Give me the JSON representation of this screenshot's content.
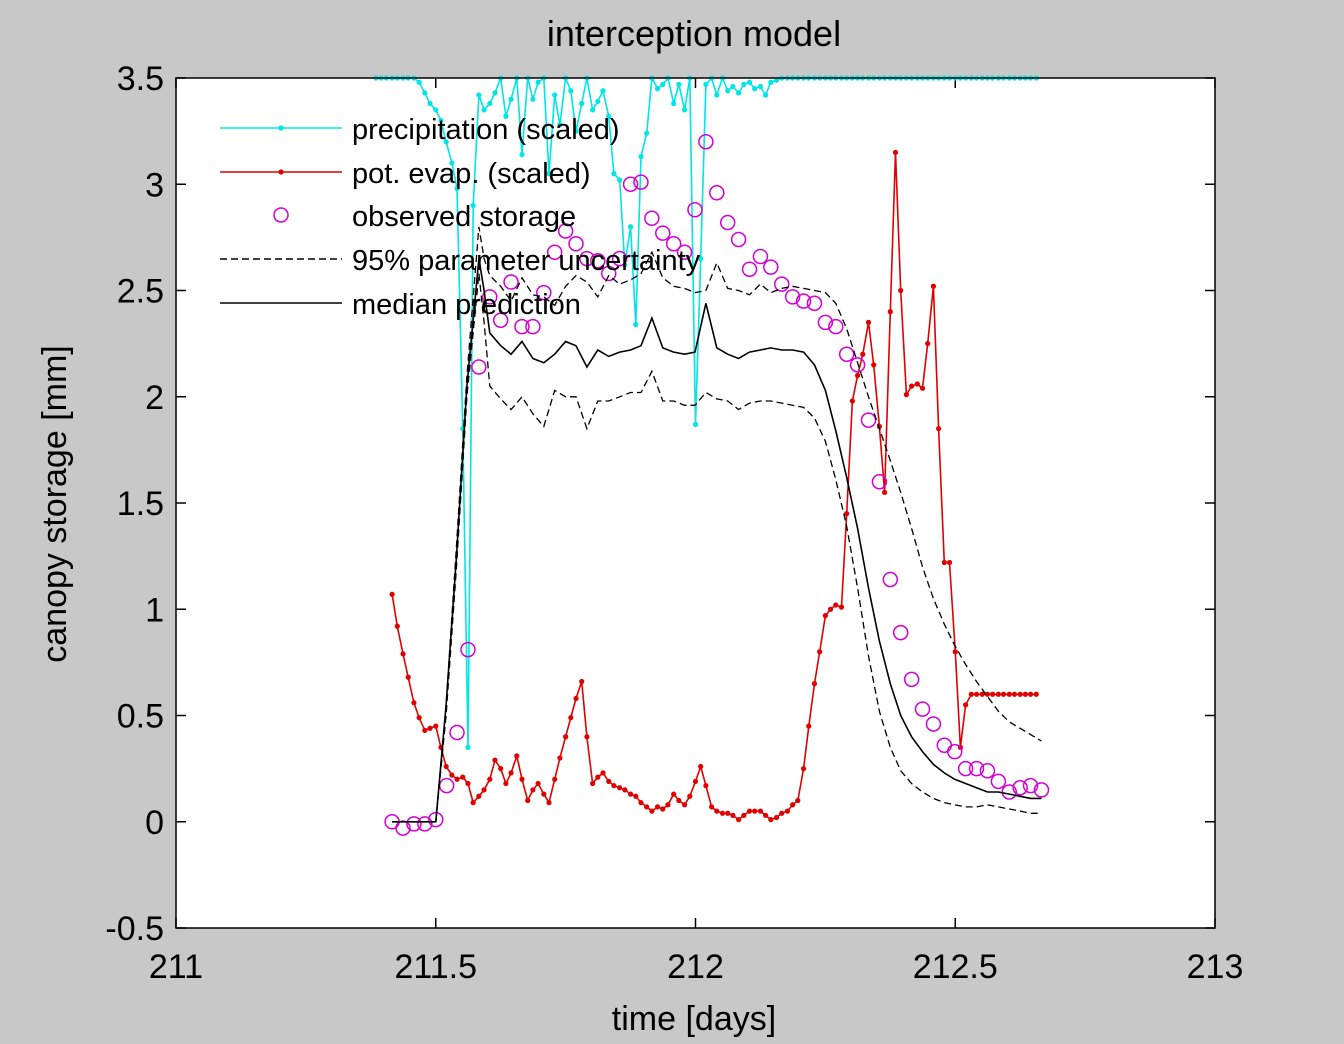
{
  "chart_data": {
    "type": "line",
    "title": "interception model",
    "xlabel": "time [days]",
    "ylabel": "canopy storage [mm]",
    "xlim": [
      211,
      213
    ],
    "ylim": [
      -0.5,
      3.5
    ],
    "xticks": [
      211,
      211.5,
      212,
      212.5,
      213
    ],
    "xtick_labels": [
      "211",
      "211.5",
      "212",
      "212.5",
      "213"
    ],
    "yticks": [
      -0.5,
      0,
      0.5,
      1,
      1.5,
      2,
      2.5,
      3,
      3.5
    ],
    "ytick_labels": [
      "-0.5",
      "0",
      "0.5",
      "1",
      "1.5",
      "2",
      "2.5",
      "3",
      "3.5"
    ],
    "grid": false,
    "legend_position": "top-left",
    "colors": {
      "figure_background": "#c8c8c8",
      "axes_background": "#ffffff",
      "precipitation": "#00e5e5",
      "pot_evap": "#e00000",
      "observed": "#d400d4",
      "model": "#000000"
    },
    "series": [
      {
        "name": "precipitation (scaled)",
        "style": "line-dot",
        "color": "#00e5e5",
        "x": [
          211.385,
          211.395,
          211.405,
          211.416,
          211.426,
          211.437,
          211.447,
          211.458,
          211.468,
          211.479,
          211.489,
          211.5,
          211.51,
          211.52,
          211.531,
          211.541,
          211.552,
          211.562,
          211.572,
          211.583,
          211.593,
          211.604,
          211.614,
          211.625,
          211.635,
          211.645,
          211.656,
          211.666,
          211.677,
          211.687,
          211.697,
          211.708,
          211.718,
          211.729,
          211.739,
          211.75,
          211.76,
          211.77,
          211.781,
          211.791,
          211.802,
          211.812,
          211.822,
          211.833,
          211.843,
          211.854,
          211.864,
          211.875,
          211.885,
          211.895,
          211.906,
          211.916,
          211.927,
          211.937,
          211.947,
          211.958,
          211.968,
          211.979,
          211.989,
          212.0,
          212.01,
          212.02,
          212.031,
          212.041,
          212.052,
          212.062,
          212.072,
          212.083,
          212.093,
          212.104,
          212.114,
          212.125,
          212.135,
          212.145,
          212.156,
          212.166,
          212.177,
          212.187,
          212.197,
          212.208,
          212.218,
          212.229,
          212.239,
          212.25,
          212.26,
          212.27,
          212.281,
          212.291,
          212.302,
          212.312,
          212.322,
          212.333,
          212.343,
          212.354,
          212.364,
          212.375,
          212.385,
          212.395,
          212.406,
          212.416,
          212.427,
          212.437,
          212.447,
          212.458,
          212.468,
          212.479,
          212.489,
          212.5,
          212.51,
          212.52,
          212.531,
          212.541,
          212.552,
          212.562,
          212.572,
          212.583,
          212.593,
          212.604,
          212.614,
          212.625,
          212.635,
          212.645,
          212.656
        ],
        "y": [
          3.5,
          3.5,
          3.5,
          3.5,
          3.5,
          3.5,
          3.5,
          3.5,
          3.48,
          3.43,
          3.38,
          3.35,
          3.3,
          3.2,
          3.1,
          2.98,
          1.85,
          0.35,
          2.9,
          3.42,
          3.35,
          3.38,
          3.43,
          3.5,
          3.32,
          3.4,
          3.5,
          3.14,
          3.5,
          3.4,
          3.48,
          3.5,
          3.05,
          3.42,
          3.28,
          3.5,
          3.44,
          3.25,
          3.38,
          3.5,
          3.35,
          3.39,
          3.44,
          3.32,
          3.05,
          3.02,
          2.62,
          2.8,
          2.34,
          3.13,
          3.24,
          3.5,
          3.45,
          3.47,
          3.5,
          3.38,
          3.47,
          3.35,
          3.5,
          1.87,
          2.65,
          3.47,
          3.5,
          3.42,
          3.5,
          3.44,
          3.46,
          3.43,
          3.47,
          3.48,
          3.45,
          3.46,
          3.42,
          3.48,
          3.49,
          3.5,
          3.5,
          3.5,
          3.5,
          3.5,
          3.5,
          3.5,
          3.5,
          3.5,
          3.5,
          3.5,
          3.5,
          3.5,
          3.5,
          3.5,
          3.5,
          3.5,
          3.5,
          3.5,
          3.5,
          3.5,
          3.5,
          3.5,
          3.5,
          3.5,
          3.5,
          3.5,
          3.5,
          3.5,
          3.5,
          3.5,
          3.5,
          3.5,
          3.5,
          3.5,
          3.5,
          3.5,
          3.5,
          3.5,
          3.5,
          3.5,
          3.5,
          3.5,
          3.5,
          3.5,
          3.5,
          3.5,
          3.5
        ]
      },
      {
        "name": "pot. evap. (scaled)",
        "style": "line-dot",
        "color": "#e00000",
        "x": [
          211.416,
          211.426,
          211.437,
          211.447,
          211.458,
          211.468,
          211.479,
          211.489,
          211.5,
          211.51,
          211.52,
          211.531,
          211.541,
          211.552,
          211.562,
          211.572,
          211.583,
          211.593,
          211.604,
          211.614,
          211.625,
          211.635,
          211.645,
          211.656,
          211.666,
          211.677,
          211.687,
          211.697,
          211.708,
          211.718,
          211.729,
          211.739,
          211.75,
          211.76,
          211.77,
          211.781,
          211.791,
          211.802,
          211.812,
          211.822,
          211.833,
          211.843,
          211.854,
          211.864,
          211.875,
          211.885,
          211.895,
          211.906,
          211.916,
          211.927,
          211.937,
          211.947,
          211.958,
          211.968,
          211.979,
          211.989,
          212.0,
          212.01,
          212.02,
          212.031,
          212.041,
          212.052,
          212.062,
          212.072,
          212.083,
          212.093,
          212.104,
          212.114,
          212.125,
          212.135,
          212.145,
          212.156,
          212.166,
          212.177,
          212.187,
          212.197,
          212.208,
          212.218,
          212.229,
          212.239,
          212.25,
          212.26,
          212.27,
          212.281,
          212.291,
          212.302,
          212.312,
          212.322,
          212.333,
          212.343,
          212.354,
          212.364,
          212.375,
          212.385,
          212.395,
          212.406,
          212.416,
          212.427,
          212.437,
          212.447,
          212.458,
          212.468,
          212.479,
          212.489,
          212.5,
          212.51,
          212.52,
          212.531,
          212.541,
          212.552,
          212.562,
          212.572,
          212.583,
          212.593,
          212.604,
          212.614,
          212.625,
          212.635,
          212.645,
          212.656
        ],
        "y": [
          1.07,
          0.92,
          0.79,
          0.68,
          0.56,
          0.49,
          0.43,
          0.44,
          0.45,
          0.35,
          0.26,
          0.22,
          0.2,
          0.21,
          0.18,
          0.09,
          0.12,
          0.15,
          0.2,
          0.29,
          0.25,
          0.18,
          0.23,
          0.31,
          0.2,
          0.1,
          0.15,
          0.18,
          0.13,
          0.09,
          0.2,
          0.3,
          0.4,
          0.49,
          0.58,
          0.66,
          0.4,
          0.18,
          0.21,
          0.23,
          0.19,
          0.17,
          0.16,
          0.15,
          0.13,
          0.12,
          0.09,
          0.07,
          0.05,
          0.07,
          0.06,
          0.08,
          0.13,
          0.1,
          0.08,
          0.12,
          0.19,
          0.26,
          0.17,
          0.07,
          0.05,
          0.04,
          0.04,
          0.03,
          0.01,
          0.03,
          0.05,
          0.05,
          0.05,
          0.03,
          0.01,
          0.02,
          0.04,
          0.05,
          0.08,
          0.1,
          0.25,
          0.45,
          0.65,
          0.8,
          0.97,
          1.0,
          1.02,
          1.01,
          1.45,
          1.98,
          2.1,
          2.2,
          2.35,
          2.15,
          1.86,
          1.55,
          2.4,
          3.15,
          2.5,
          2.01,
          2.05,
          2.06,
          2.04,
          2.25,
          2.52,
          1.85,
          1.22,
          1.22,
          0.8,
          0.35,
          0.55,
          0.6,
          0.6,
          0.6,
          0.6,
          0.6,
          0.6,
          0.6,
          0.6,
          0.6,
          0.6,
          0.6,
          0.6,
          0.6
        ]
      },
      {
        "name": "observed storage",
        "style": "marker-circle",
        "color": "#d400d4",
        "x": [
          211.416,
          211.437,
          211.458,
          211.479,
          211.5,
          211.521,
          211.541,
          211.562,
          211.583,
          211.604,
          211.625,
          211.645,
          211.666,
          211.687,
          211.708,
          211.729,
          211.75,
          211.77,
          211.791,
          211.812,
          211.833,
          211.854,
          211.875,
          211.895,
          211.916,
          211.937,
          211.958,
          211.979,
          211.999,
          212.02,
          212.041,
          212.062,
          212.083,
          212.104,
          212.125,
          212.145,
          212.166,
          212.187,
          212.208,
          212.229,
          212.25,
          212.27,
          212.291,
          212.312,
          212.333,
          212.354,
          212.375,
          212.395,
          212.416,
          212.437,
          212.458,
          212.479,
          212.499,
          212.52,
          212.541,
          212.562,
          212.583,
          212.604,
          212.625,
          212.645,
          212.666
        ],
        "y": [
          0.0,
          -0.03,
          -0.01,
          -0.01,
          0.01,
          0.17,
          0.42,
          0.81,
          2.14,
          2.47,
          2.36,
          2.54,
          2.33,
          2.33,
          2.49,
          2.68,
          2.78,
          2.72,
          2.65,
          2.64,
          2.58,
          2.65,
          3.0,
          3.01,
          2.84,
          2.77,
          2.72,
          2.68,
          2.88,
          3.2,
          2.96,
          2.82,
          2.74,
          2.6,
          2.66,
          2.61,
          2.53,
          2.47,
          2.45,
          2.44,
          2.35,
          2.33,
          2.2,
          2.15,
          1.89,
          1.6,
          1.14,
          0.89,
          0.67,
          0.53,
          0.46,
          0.36,
          0.33,
          0.25,
          0.25,
          0.24,
          0.19,
          0.14,
          0.16,
          0.17,
          0.15
        ]
      },
      {
        "name": "95% parameter uncertainty",
        "style": "dashed",
        "color": "#000000",
        "x": [
          211.416,
          211.5,
          211.52,
          211.54,
          211.56,
          211.583,
          211.593,
          211.604,
          211.625,
          211.645,
          211.666,
          211.687,
          211.708,
          211.729,
          211.75,
          211.77,
          211.791,
          211.812,
          211.833,
          211.854,
          211.875,
          211.895,
          211.916,
          211.937,
          211.958,
          211.979,
          211.999,
          212.02,
          212.041,
          212.062,
          212.083,
          212.104,
          212.125,
          212.145,
          212.166,
          212.187,
          212.208,
          212.229,
          212.25,
          212.27,
          212.291,
          212.312,
          212.333,
          212.354,
          212.375,
          212.395,
          212.416,
          212.437,
          212.458,
          212.479,
          212.499,
          212.52,
          212.541,
          212.562,
          212.583,
          212.604,
          212.625,
          212.645,
          212.666
        ],
        "y": [
          0.0,
          0.0,
          0.55,
          1.3,
          2.1,
          2.8,
          2.65,
          2.57,
          2.52,
          2.45,
          2.56,
          2.48,
          2.47,
          2.43,
          2.52,
          2.57,
          2.54,
          2.47,
          2.57,
          2.53,
          2.55,
          2.58,
          2.68,
          2.56,
          2.52,
          2.51,
          2.49,
          2.5,
          2.63,
          2.51,
          2.5,
          2.48,
          2.53,
          2.49,
          2.51,
          2.52,
          2.51,
          2.5,
          2.49,
          2.44,
          2.32,
          2.16,
          2.0,
          1.85,
          1.7,
          1.55,
          1.38,
          1.2,
          1.05,
          0.93,
          0.83,
          0.74,
          0.66,
          0.59,
          0.52,
          0.47,
          0.44,
          0.41,
          0.38
        ]
      },
      {
        "name": "",
        "style": "dashed",
        "color": "#000000",
        "x": [
          211.416,
          211.5,
          211.52,
          211.54,
          211.56,
          211.583,
          211.593,
          211.604,
          211.625,
          211.645,
          211.666,
          211.687,
          211.708,
          211.729,
          211.75,
          211.77,
          211.791,
          211.812,
          211.833,
          211.854,
          211.875,
          211.895,
          211.916,
          211.937,
          211.958,
          211.979,
          211.999,
          212.02,
          212.041,
          212.062,
          212.083,
          212.104,
          212.125,
          212.145,
          212.166,
          212.187,
          212.208,
          212.229,
          212.25,
          212.27,
          212.291,
          212.312,
          212.333,
          212.354,
          212.375,
          212.395,
          212.416,
          212.437,
          212.458,
          212.479,
          212.499,
          212.52,
          212.541,
          212.562,
          212.583,
          212.604,
          212.625,
          212.645,
          212.666
        ],
        "y": [
          0.0,
          0.0,
          0.5,
          1.2,
          2.0,
          2.58,
          2.35,
          2.05,
          1.99,
          1.94,
          2.0,
          1.92,
          1.86,
          2.03,
          2.0,
          2.0,
          1.85,
          1.98,
          1.98,
          2.0,
          2.02,
          2.02,
          2.12,
          1.98,
          1.98,
          1.96,
          1.96,
          2.02,
          1.99,
          1.98,
          1.94,
          1.97,
          1.98,
          1.98,
          1.97,
          1.96,
          1.95,
          1.9,
          1.79,
          1.61,
          1.39,
          1.1,
          0.78,
          0.52,
          0.35,
          0.24,
          0.18,
          0.14,
          0.11,
          0.09,
          0.08,
          0.07,
          0.07,
          0.08,
          0.07,
          0.06,
          0.05,
          0.04,
          0.04
        ]
      },
      {
        "name": "median prediction",
        "style": "solid",
        "color": "#000000",
        "x": [
          211.416,
          211.5,
          211.52,
          211.54,
          211.56,
          211.583,
          211.593,
          211.604,
          211.625,
          211.645,
          211.666,
          211.687,
          211.708,
          211.729,
          211.75,
          211.77,
          211.791,
          211.812,
          211.833,
          211.854,
          211.875,
          211.895,
          211.916,
          211.937,
          211.958,
          211.979,
          211.999,
          212.02,
          212.041,
          212.062,
          212.083,
          212.104,
          212.125,
          212.145,
          212.166,
          212.187,
          212.208,
          212.229,
          212.25,
          212.27,
          212.291,
          212.312,
          212.333,
          212.354,
          212.375,
          212.395,
          212.416,
          212.437,
          212.458,
          212.479,
          212.499,
          212.52,
          212.541,
          212.562,
          212.583,
          212.604,
          212.625,
          212.645,
          212.666
        ],
        "y": [
          0.0,
          0.0,
          0.55,
          1.25,
          2.05,
          2.65,
          2.5,
          2.3,
          2.24,
          2.2,
          2.26,
          2.18,
          2.16,
          2.2,
          2.26,
          2.24,
          2.14,
          2.22,
          2.19,
          2.21,
          2.22,
          2.24,
          2.37,
          2.23,
          2.21,
          2.2,
          2.21,
          2.44,
          2.23,
          2.2,
          2.18,
          2.21,
          2.22,
          2.23,
          2.22,
          2.22,
          2.21,
          2.15,
          2.03,
          1.84,
          1.62,
          1.38,
          1.1,
          0.85,
          0.65,
          0.5,
          0.4,
          0.33,
          0.27,
          0.23,
          0.2,
          0.18,
          0.16,
          0.14,
          0.14,
          0.13,
          0.12,
          0.11,
          0.11
        ]
      }
    ],
    "legend": [
      {
        "label": "precipitation (scaled)",
        "style": "line-dot",
        "color": "#00e5e5"
      },
      {
        "label": "pot. evap. (scaled)",
        "style": "line-dot",
        "color": "#e00000"
      },
      {
        "label": "observed storage",
        "style": "marker-circle",
        "color": "#d400d4"
      },
      {
        "label": "95% parameter uncertainty",
        "style": "dashed",
        "color": "#000000"
      },
      {
        "label": "median prediction",
        "style": "solid",
        "color": "#000000"
      }
    ]
  }
}
